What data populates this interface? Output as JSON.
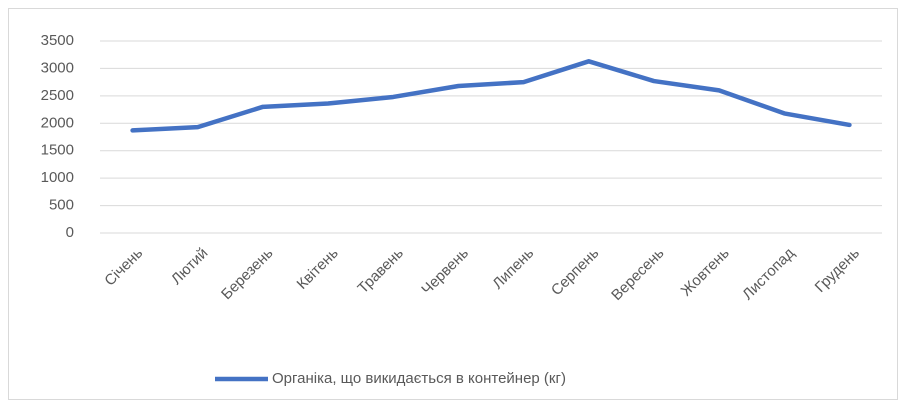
{
  "chart_data": {
    "type": "line",
    "categories": [
      "Січень",
      "Лютий",
      "Березень",
      "Квітень",
      "Травень",
      "Червень",
      "Липень",
      "Серпень",
      "Вересень",
      "Жовтень",
      "Листопад",
      "Грудень"
    ],
    "series": [
      {
        "name": "Органіка, що викидається в контейнер (кг)",
        "color": "#4472c4",
        "values": [
          1870,
          1930,
          2300,
          2360,
          2480,
          2680,
          2750,
          3130,
          2770,
          2600,
          2180,
          1970
        ]
      }
    ],
    "ylim": [
      0,
      3500
    ],
    "yticks": [
      0,
      500,
      1000,
      1500,
      2000,
      2500,
      3000,
      3500
    ],
    "grid": true,
    "legend": "bottom"
  }
}
